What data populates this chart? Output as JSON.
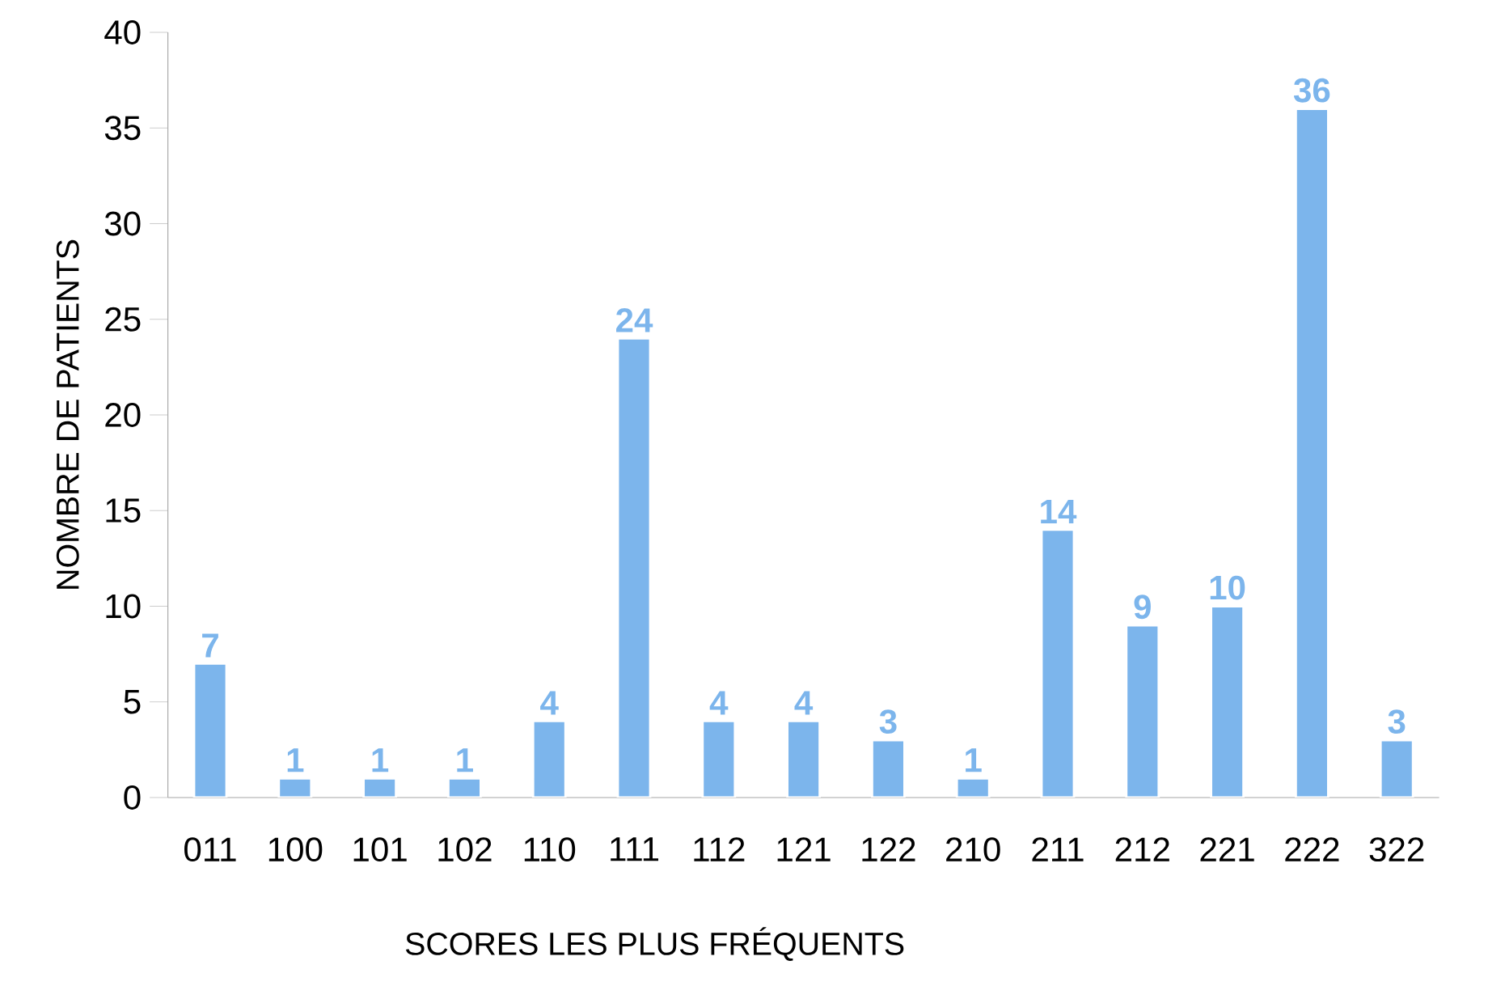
{
  "chart_data": {
    "type": "bar",
    "xlabel": "SCORES LES PLUS FRÉQUENTS",
    "ylabel": "NOMBRE DE PATIENTS",
    "categories": [
      "011",
      "100",
      "101",
      "102",
      "110",
      "111",
      "112",
      "121",
      "122",
      "210",
      "211",
      "212",
      "221",
      "222",
      "322"
    ],
    "values": [
      7,
      1,
      1,
      1,
      4,
      24,
      4,
      4,
      3,
      1,
      14,
      9,
      10,
      36,
      3
    ],
    "color": "#7cb5ec",
    "ylim": [
      0,
      40
    ],
    "yticks": [
      0,
      5,
      10,
      15,
      20,
      25,
      30,
      35,
      40
    ],
    "data_labels": true
  }
}
